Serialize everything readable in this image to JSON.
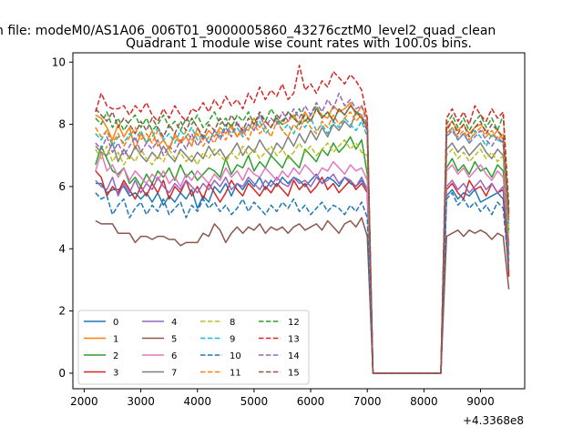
{
  "figure": {
    "suptitle": "n file: modeM0/AS1A06_006T01_9000005860_43276cztM0_level2_quad_clean"
  },
  "chart_data": {
    "type": "line",
    "title": "Quadrant 1 module wise count rates with 100.0s bins.",
    "xlabel": "",
    "ylabel": "",
    "x_offset_label": "+4.3368e8",
    "xlim": [
      1800,
      9780
    ],
    "ylim": [
      -0.5,
      10.3
    ],
    "xticks": [
      "2000",
      "3000",
      "4000",
      "5000",
      "6000",
      "7000",
      "8000",
      "9000"
    ],
    "xtick_values": [
      2000,
      3000,
      4000,
      5000,
      6000,
      7000,
      8000,
      9000
    ],
    "yticks": [
      "0",
      "2",
      "4",
      "6",
      "8",
      "10"
    ],
    "ytick_values": [
      0,
      2,
      4,
      6,
      8,
      10
    ],
    "grid": false,
    "legend_placement": "lower-left",
    "x": [
      2200,
      2300,
      2400,
      2500,
      2600,
      2700,
      2800,
      2900,
      3000,
      3100,
      3200,
      3300,
      3400,
      3500,
      3600,
      3700,
      3800,
      3900,
      4000,
      4100,
      4200,
      4300,
      4400,
      4500,
      4600,
      4700,
      4800,
      4900,
      5000,
      5100,
      5200,
      5300,
      5400,
      5500,
      5600,
      5700,
      5800,
      5900,
      6000,
      6100,
      6200,
      6300,
      6400,
      6500,
      6600,
      6700,
      6800,
      6900,
      7000,
      7100,
      8300,
      8400,
      8500,
      8600,
      8700,
      8800,
      8900,
      9000,
      9100,
      9200,
      9300,
      9400,
      9500
    ],
    "series": [
      {
        "name": "0",
        "color": "#1f77b4",
        "style": "solid",
        "values": [
          6.1,
          6.1,
          5.8,
          5.9,
          5.9,
          6.0,
          5.7,
          5.8,
          5.6,
          5.8,
          5.5,
          5.8,
          5.4,
          5.7,
          5.5,
          5.8,
          5.6,
          5.9,
          5.3,
          5.7,
          5.5,
          6.0,
          5.8,
          6.1,
          5.7,
          6.1,
          5.9,
          6.2,
          6.0,
          6.3,
          5.9,
          6.2,
          6.0,
          6.3,
          6.1,
          6.3,
          6.2,
          6.0,
          6.2,
          6.4,
          6.1,
          6.3,
          6.2,
          6.0,
          6.3,
          6.1,
          6.0,
          6.2,
          5.9,
          0.0,
          0.0,
          5.7,
          5.9,
          5.6,
          5.8,
          5.7,
          5.9,
          5.5,
          5.6,
          5.7,
          5.8,
          5.6,
          3.6
        ]
      },
      {
        "name": "1",
        "color": "#ff7f0e",
        "style": "solid",
        "values": [
          8.3,
          8.2,
          7.9,
          7.5,
          8.0,
          7.6,
          7.9,
          7.2,
          7.7,
          7.4,
          7.8,
          7.3,
          7.5,
          7.2,
          7.7,
          7.4,
          7.6,
          7.3,
          7.9,
          7.5,
          7.8,
          7.6,
          7.9,
          7.7,
          8.0,
          7.6,
          7.9,
          7.8,
          8.2,
          7.9,
          8.1,
          7.9,
          8.2,
          8.0,
          8.1,
          8.3,
          8.0,
          8.4,
          8.1,
          8.5,
          8.3,
          8.2,
          8.6,
          8.4,
          8.5,
          8.7,
          8.3,
          8.6,
          8.2,
          0.0,
          0.0,
          7.9,
          8.1,
          7.8,
          8.0,
          7.7,
          7.9,
          8.0,
          7.8,
          7.6,
          7.8,
          7.5,
          3.2
        ]
      },
      {
        "name": "2",
        "color": "#2ca02c",
        "style": "solid",
        "values": [
          6.7,
          7.3,
          6.9,
          6.5,
          6.4,
          6.6,
          6.1,
          6.3,
          6.0,
          6.4,
          6.1,
          6.5,
          6.3,
          6.6,
          6.2,
          6.7,
          6.3,
          6.5,
          6.2,
          6.4,
          6.6,
          6.5,
          6.3,
          6.9,
          6.4,
          6.7,
          6.6,
          7.0,
          6.5,
          6.8,
          6.6,
          7.0,
          6.8,
          6.6,
          7.0,
          6.8,
          6.6,
          7.2,
          7.0,
          6.8,
          7.2,
          7.0,
          7.4,
          7.1,
          7.3,
          7.6,
          7.2,
          7.5,
          6.4,
          0.0,
          0.0,
          6.6,
          6.9,
          6.5,
          6.7,
          6.4,
          6.8,
          6.5,
          6.6,
          6.3,
          6.7,
          6.5,
          4.6
        ]
      },
      {
        "name": "3",
        "color": "#d62728",
        "style": "solid",
        "values": [
          6.5,
          6.3,
          5.7,
          6.0,
          5.8,
          6.2,
          5.9,
          5.6,
          6.0,
          5.7,
          6.1,
          5.8,
          6.2,
          5.6,
          6.0,
          5.8,
          6.2,
          5.7,
          6.0,
          5.6,
          6.1,
          5.8,
          5.5,
          5.8,
          6.2,
          5.9,
          5.7,
          6.1,
          5.9,
          5.7,
          6.0,
          5.8,
          6.1,
          5.9,
          5.7,
          6.2,
          5.9,
          6.1,
          5.8,
          6.0,
          6.3,
          5.9,
          6.1,
          5.8,
          6.0,
          6.2,
          5.9,
          6.1,
          5.8,
          0.0,
          0.0,
          5.9,
          6.1,
          5.8,
          5.6,
          6.2,
          5.9,
          6.0,
          5.7,
          6.1,
          5.8,
          5.9,
          3.1
        ]
      },
      {
        "name": "4",
        "color": "#9467bd",
        "style": "solid",
        "values": [
          6.2,
          6.0,
          5.9,
          6.3,
          5.7,
          6.1,
          5.8,
          6.2,
          5.8,
          6.1,
          5.9,
          6.3,
          6.0,
          5.8,
          6.1,
          5.9,
          6.2,
          6.0,
          5.8,
          6.1,
          5.9,
          6.2,
          6.0,
          6.3,
          5.9,
          6.1,
          6.0,
          6.3,
          6.1,
          5.9,
          6.2,
          6.0,
          6.3,
          6.1,
          6.0,
          6.3,
          6.1,
          6.2,
          6.0,
          6.3,
          6.1,
          6.2,
          6.4,
          6.1,
          6.3,
          6.2,
          6.0,
          6.3,
          5.9,
          0.0,
          0.0,
          6.0,
          6.2,
          5.9,
          6.1,
          5.8,
          6.0,
          6.2,
          5.9,
          6.1,
          5.8,
          6.0,
          4.1
        ]
      },
      {
        "name": "5",
        "color": "#8c564b",
        "style": "solid",
        "values": [
          4.9,
          4.8,
          4.8,
          4.8,
          4.5,
          4.5,
          4.5,
          4.2,
          4.4,
          4.4,
          4.3,
          4.4,
          4.4,
          4.3,
          4.3,
          4.1,
          4.2,
          4.2,
          4.2,
          4.5,
          4.4,
          4.8,
          4.6,
          4.2,
          4.5,
          4.7,
          4.5,
          4.7,
          4.6,
          4.8,
          4.5,
          4.7,
          4.6,
          4.7,
          4.5,
          4.7,
          4.8,
          4.6,
          4.7,
          4.8,
          4.6,
          4.9,
          4.7,
          4.5,
          4.8,
          4.9,
          4.7,
          5.0,
          4.4,
          0.0,
          0.0,
          4.4,
          4.5,
          4.6,
          4.4,
          4.6,
          4.5,
          4.6,
          4.5,
          4.3,
          4.5,
          4.4,
          2.7
        ]
      },
      {
        "name": "6",
        "color": "#e377c2",
        "style": "solid",
        "values": [
          6.5,
          7.1,
          6.5,
          6.7,
          6.3,
          6.6,
          6.2,
          6.5,
          6.3,
          6.1,
          6.4,
          6.2,
          6.5,
          6.1,
          6.3,
          6.0,
          6.4,
          6.2,
          6.5,
          6.3,
          6.1,
          6.4,
          6.2,
          6.6,
          6.3,
          6.5,
          6.2,
          6.6,
          6.4,
          6.3,
          6.6,
          6.4,
          6.2,
          6.5,
          6.3,
          6.6,
          6.4,
          6.7,
          6.5,
          6.3,
          6.6,
          6.5,
          6.8,
          6.6,
          6.4,
          6.7,
          6.5,
          6.6,
          6.2,
          0.0,
          0.0,
          6.5,
          6.7,
          6.4,
          6.6,
          6.3,
          6.5,
          6.7,
          6.4,
          6.2,
          6.5,
          6.3,
          4.2
        ]
      },
      {
        "name": "7",
        "color": "#7f7f7f",
        "style": "solid",
        "values": [
          7.3,
          7.1,
          7.0,
          7.4,
          6.8,
          7.2,
          6.9,
          7.3,
          7.0,
          6.8,
          7.1,
          6.9,
          7.3,
          7.0,
          6.8,
          7.2,
          7.0,
          6.8,
          7.1,
          6.9,
          7.3,
          7.0,
          7.2,
          6.9,
          7.1,
          7.4,
          7.0,
          7.3,
          7.1,
          7.5,
          7.2,
          7.0,
          7.4,
          7.2,
          7.6,
          7.3,
          7.7,
          7.4,
          7.8,
          7.5,
          7.9,
          7.6,
          8.0,
          7.8,
          8.1,
          7.9,
          8.4,
          8.3,
          7.9,
          0.0,
          0.0,
          7.2,
          7.4,
          7.1,
          7.3,
          7.0,
          7.2,
          7.4,
          7.1,
          6.9,
          7.2,
          7.0,
          3.8
        ]
      },
      {
        "name": "8",
        "color": "#bcbd22",
        "style": "dashed",
        "values": [
          7.2,
          6.9,
          7.3,
          6.8,
          7.1,
          6.7,
          7.0,
          6.8,
          7.2,
          6.9,
          6.7,
          7.0,
          6.8,
          7.2,
          6.9,
          7.1,
          6.8,
          7.0,
          6.7,
          7.1,
          6.9,
          7.2,
          7.0,
          6.8,
          7.1,
          6.9,
          7.3,
          7.0,
          7.2,
          6.9,
          7.1,
          7.3,
          7.0,
          7.2,
          6.9,
          7.1,
          7.4,
          7.1,
          7.3,
          7.0,
          7.2,
          7.4,
          7.1,
          7.3,
          7.5,
          7.2,
          7.4,
          7.1,
          7.0,
          0.0,
          0.0,
          7.0,
          7.2,
          6.9,
          7.1,
          6.8,
          7.0,
          7.2,
          6.9,
          7.1,
          6.8,
          7.0,
          4.5
        ]
      },
      {
        "name": "9",
        "color": "#17becf",
        "style": "dashed",
        "values": [
          7.7,
          7.5,
          7.8,
          7.3,
          7.6,
          7.4,
          7.7,
          7.5,
          7.8,
          7.4,
          7.6,
          7.9,
          7.5,
          7.7,
          7.4,
          7.8,
          7.6,
          7.9,
          7.5,
          7.7,
          7.4,
          7.8,
          7.6,
          8.0,
          7.7,
          7.9,
          7.6,
          8.0,
          7.8,
          8.1,
          7.7,
          7.9,
          8.2,
          7.8,
          8.0,
          7.7,
          8.1,
          7.9,
          8.2,
          7.8,
          8.0,
          7.7,
          8.1,
          7.9,
          8.2,
          8.0,
          7.8,
          8.1,
          7.6,
          0.0,
          0.0,
          7.6,
          7.9,
          7.5,
          7.7,
          7.4,
          7.8,
          7.6,
          7.3,
          7.7,
          7.5,
          7.4,
          4.8
        ]
      },
      {
        "name": "10",
        "color": "#1f77b4",
        "style": "dashed",
        "values": [
          5.8,
          5.6,
          5.7,
          5.1,
          5.4,
          5.6,
          5.0,
          5.3,
          5.5,
          5.1,
          5.4,
          5.2,
          5.6,
          5.1,
          5.3,
          5.5,
          5.0,
          5.4,
          5.2,
          5.6,
          5.3,
          5.5,
          5.2,
          5.4,
          5.1,
          5.3,
          5.6,
          5.2,
          5.5,
          5.3,
          5.1,
          5.4,
          5.2,
          5.5,
          5.3,
          5.6,
          5.2,
          5.4,
          5.1,
          5.3,
          5.5,
          5.2,
          5.4,
          5.3,
          5.1,
          5.4,
          5.2,
          5.5,
          5.0,
          0.0,
          0.0,
          5.6,
          5.8,
          5.4,
          5.6,
          5.3,
          5.5,
          5.2,
          5.4,
          5.1,
          5.5,
          5.3,
          3.3
        ]
      },
      {
        "name": "11",
        "color": "#ff7f0e",
        "style": "dashed",
        "values": [
          7.9,
          7.6,
          7.8,
          7.4,
          7.7,
          7.3,
          7.6,
          7.9,
          7.5,
          7.7,
          7.4,
          7.8,
          7.5,
          7.2,
          7.6,
          7.4,
          7.8,
          7.5,
          7.7,
          7.3,
          7.6,
          7.4,
          7.8,
          7.5,
          7.9,
          7.6,
          7.8,
          7.5,
          8.0,
          7.7,
          7.9,
          7.6,
          8.1,
          7.8,
          7.6,
          8.0,
          7.8,
          8.2,
          7.9,
          7.7,
          8.1,
          7.9,
          8.3,
          8.0,
          8.2,
          8.4,
          8.1,
          8.3,
          7.8,
          0.0,
          0.0,
          7.7,
          7.9,
          7.6,
          7.8,
          7.5,
          7.7,
          7.9,
          7.6,
          7.8,
          7.5,
          7.7,
          5.0
        ]
      },
      {
        "name": "12",
        "color": "#2ca02c",
        "style": "dashed",
        "values": [
          8.2,
          8.0,
          8.4,
          7.9,
          8.2,
          7.8,
          8.1,
          8.3,
          7.9,
          8.2,
          7.8,
          8.0,
          8.3,
          7.9,
          8.1,
          7.8,
          8.2,
          8.0,
          8.3,
          7.9,
          8.1,
          8.4,
          8.0,
          8.2,
          7.9,
          8.3,
          8.1,
          8.4,
          8.0,
          8.3,
          8.1,
          8.5,
          8.2,
          8.0,
          8.4,
          8.2,
          8.5,
          8.1,
          8.3,
          8.6,
          8.2,
          8.4,
          8.1,
          8.5,
          8.3,
          8.6,
          8.4,
          8.2,
          8.0,
          0.0,
          0.0,
          8.0,
          8.3,
          7.9,
          8.2,
          7.8,
          8.1,
          8.3,
          7.9,
          8.2,
          7.8,
          8.3,
          5.4
        ]
      },
      {
        "name": "13",
        "color": "#d62728",
        "style": "dashed",
        "values": [
          8.4,
          9.0,
          8.6,
          8.5,
          8.5,
          8.6,
          8.3,
          8.6,
          8.4,
          8.7,
          8.3,
          8.1,
          8.5,
          8.2,
          8.6,
          8.3,
          8.1,
          8.5,
          8.4,
          8.7,
          8.4,
          8.8,
          8.5,
          8.9,
          8.6,
          8.8,
          8.5,
          9.0,
          8.7,
          9.2,
          8.8,
          9.1,
          8.9,
          9.3,
          8.8,
          9.0,
          9.9,
          9.1,
          9.3,
          9.0,
          9.4,
          9.2,
          9.7,
          9.5,
          9.3,
          9.6,
          9.4,
          9.1,
          8.2,
          0.0,
          0.0,
          8.2,
          8.5,
          8.1,
          8.4,
          8.0,
          8.6,
          8.3,
          8.1,
          8.5,
          8.2,
          8.4,
          5.2
        ]
      },
      {
        "name": "14",
        "color": "#9467bd",
        "style": "dashed",
        "values": [
          7.4,
          7.2,
          7.6,
          7.1,
          7.4,
          7.0,
          7.3,
          7.6,
          7.1,
          7.4,
          7.2,
          7.5,
          7.0,
          7.3,
          7.1,
          7.5,
          7.2,
          7.7,
          7.3,
          7.6,
          7.4,
          7.8,
          7.5,
          7.9,
          7.6,
          8.1,
          7.7,
          8.0,
          7.8,
          8.3,
          7.9,
          8.2,
          8.0,
          8.4,
          8.1,
          8.5,
          8.2,
          8.6,
          8.3,
          8.7,
          8.4,
          8.8,
          8.5,
          9.0,
          8.6,
          8.8,
          8.5,
          8.6,
          8.0,
          0.0,
          0.0,
          7.6,
          7.8,
          7.5,
          7.7,
          7.4,
          7.6,
          7.8,
          7.5,
          7.3,
          7.6,
          7.4,
          4.9
        ]
      },
      {
        "name": "15",
        "color": "#8c564b",
        "style": "dashed",
        "values": [
          8.5,
          8.3,
          8.1,
          8.4,
          7.9,
          8.2,
          8.0,
          7.7,
          8.1,
          7.8,
          8.2,
          7.9,
          7.6,
          8.0,
          7.7,
          8.1,
          7.8,
          8.2,
          7.9,
          7.6,
          8.0,
          7.8,
          8.2,
          7.9,
          8.3,
          8.0,
          7.8,
          8.2,
          8.0,
          8.4,
          8.1,
          7.9,
          8.3,
          8.1,
          8.4,
          8.2,
          8.0,
          8.3,
          8.1,
          8.5,
          8.2,
          8.4,
          8.1,
          8.5,
          8.3,
          8.6,
          8.4,
          8.2,
          7.8,
          0.0,
          0.0,
          7.8,
          8.1,
          7.7,
          8.0,
          7.6,
          7.9,
          8.1,
          7.7,
          8.0,
          7.8,
          7.6,
          5.1
        ]
      }
    ]
  }
}
